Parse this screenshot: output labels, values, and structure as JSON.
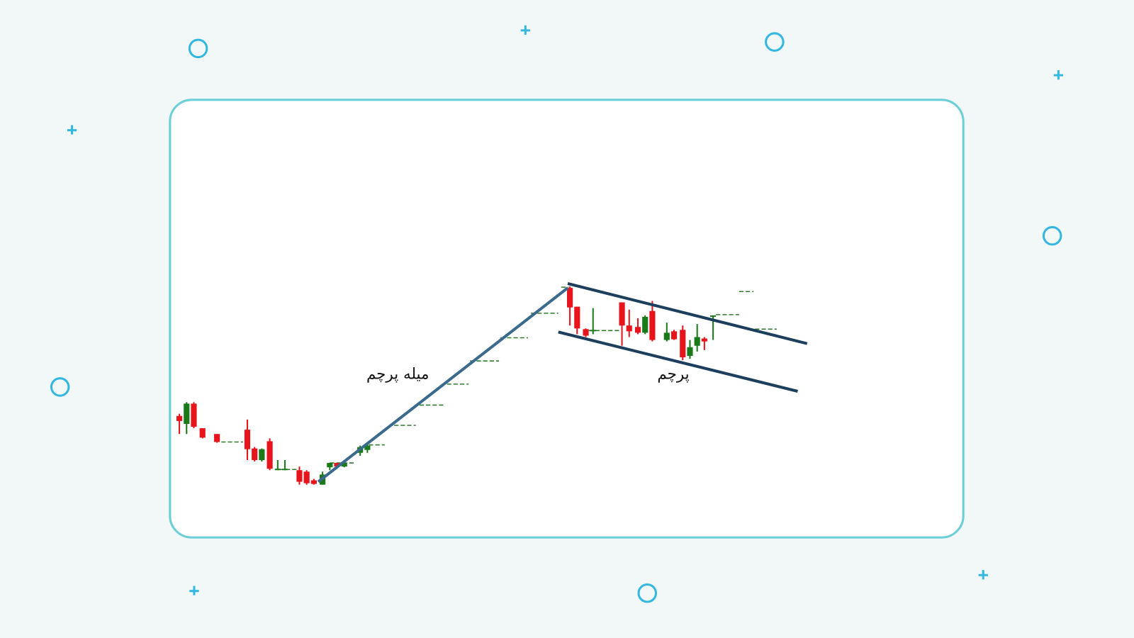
{
  "labels": {
    "flagpole": "میله پرچم",
    "flag": "پرچم"
  }
}
